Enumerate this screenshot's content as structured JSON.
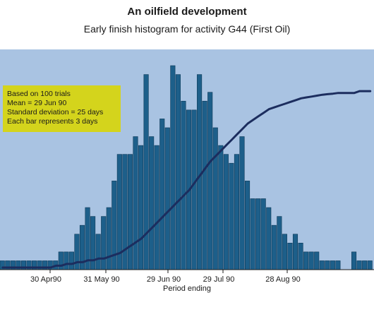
{
  "chart_data": {
    "type": "bar",
    "title": "An oilfield development",
    "subtitle": "Early finish histogram for activity G44 (First Oil)",
    "xlabel": "Period ending",
    "ylabel": "",
    "annotation": [
      "Based on 100 trials",
      "Mean = 29 Jun 90",
      "Standard deviation = 25 days",
      "Each bar represents 3 days"
    ],
    "x_tick_labels": [
      "30 Apr90",
      "31 May 90",
      "29 Jun 90",
      "29 Jul 90",
      "28 Aug 90"
    ],
    "series": [
      {
        "type": "bar",
        "values": [
          1,
          1,
          1,
          1,
          1,
          1,
          1,
          1,
          1,
          1,
          1,
          2,
          2,
          2,
          4,
          5,
          7,
          6,
          4,
          6,
          7,
          10,
          13,
          13,
          13,
          15,
          14,
          22,
          15,
          14,
          17,
          16,
          23,
          22,
          19,
          18,
          18,
          22,
          19,
          20,
          16,
          14,
          13,
          12,
          13,
          15,
          10,
          8,
          8,
          8,
          7,
          5,
          6,
          4,
          3,
          4,
          3,
          2,
          2,
          2,
          1,
          1,
          1,
          1,
          0,
          0,
          2,
          1,
          1,
          1
        ]
      },
      {
        "type": "line",
        "name": "cumulative",
        "values": [
          0,
          0,
          0,
          0,
          0,
          0,
          0,
          0,
          0,
          0,
          1,
          1,
          2,
          2,
          3,
          3,
          4,
          4,
          5,
          5,
          6,
          7,
          8,
          10,
          12,
          14,
          16,
          19,
          22,
          25,
          28,
          31,
          34,
          37,
          40,
          43,
          47,
          51,
          55,
          59,
          62,
          65,
          68,
          71,
          74,
          77,
          80,
          82,
          84,
          86,
          88,
          89,
          90,
          91,
          92,
          93,
          94,
          94.5,
          95,
          95.5,
          96,
          96.3,
          96.6,
          97,
          97,
          97,
          97,
          98,
          98,
          98
        ]
      }
    ],
    "colors": {
      "plot_background": "#a9c3e2",
      "bar_fill": "#1d5f8a",
      "line": "#1c2d5e",
      "annotation_box": "#d4d41c"
    },
    "grid": false
  }
}
